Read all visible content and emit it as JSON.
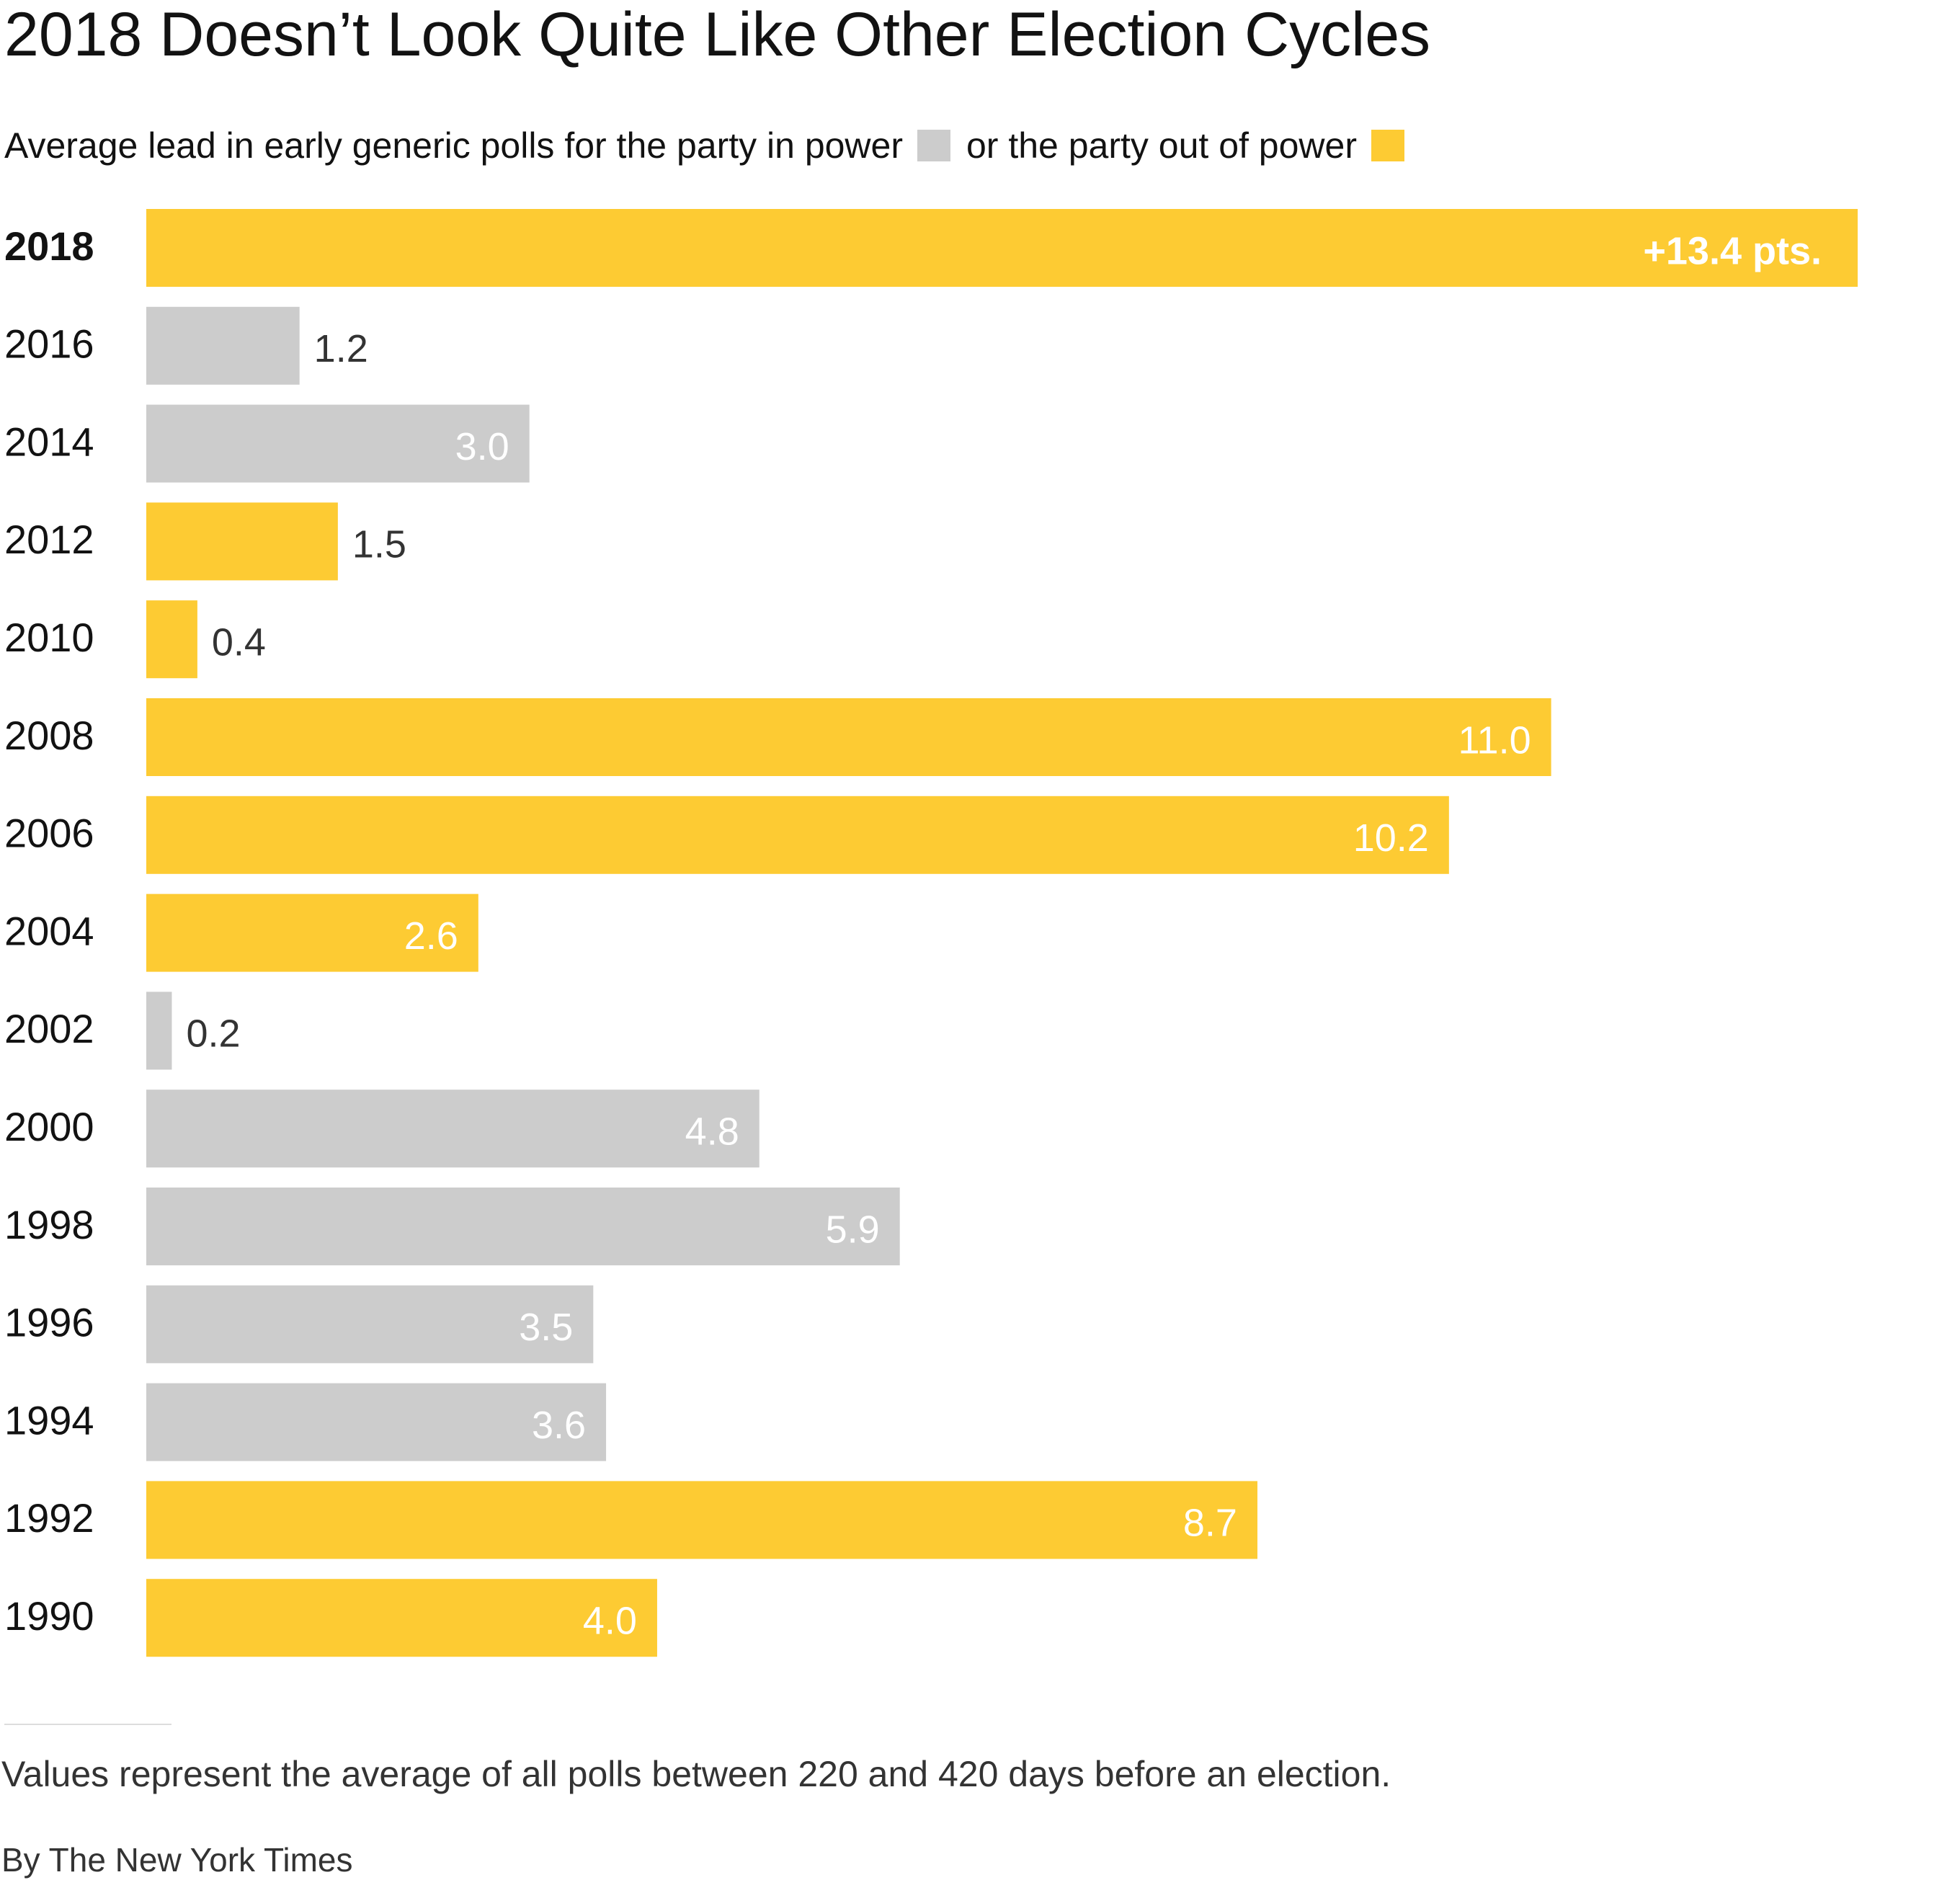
{
  "chart_data": {
    "type": "bar",
    "orientation": "horizontal",
    "title": "2018 Doesn’t Look Quite Like Other Election Cycles",
    "subtitle": {
      "prefix": "Average lead in early generic polls for the party in power",
      "middle": "or the party out of power"
    },
    "legend": [
      {
        "name": "party in power",
        "color": "#cccccc"
      },
      {
        "name": "party out of power",
        "color": "#fdcb33"
      }
    ],
    "categories": [
      "2018",
      "2016",
      "2014",
      "2012",
      "2010",
      "2008",
      "2006",
      "2004",
      "2002",
      "2000",
      "1998",
      "1996",
      "1994",
      "1992",
      "1990"
    ],
    "values": [
      13.4,
      1.2,
      3.0,
      1.5,
      0.4,
      11.0,
      10.2,
      2.6,
      0.2,
      4.8,
      5.9,
      3.5,
      3.6,
      8.7,
      4.0
    ],
    "value_labels": [
      "+13.4 pts.",
      "1.2",
      "3.0",
      "1.5",
      "0.4",
      "11.0",
      "10.2",
      "2.6",
      "0.2",
      "4.8",
      "5.9",
      "3.5",
      "3.6",
      "8.7",
      "4.0"
    ],
    "party": [
      "out",
      "in",
      "in",
      "out",
      "out",
      "out",
      "out",
      "out",
      "in",
      "in",
      "in",
      "in",
      "in",
      "out",
      "out"
    ],
    "highlight": "2018",
    "xlim": [
      0,
      13.4
    ],
    "grid": false,
    "xlabel": "",
    "ylabel": ""
  },
  "footnote": "Values represent the average of all polls between 220 and 420 days before an election.",
  "credit": "By The New York Times"
}
